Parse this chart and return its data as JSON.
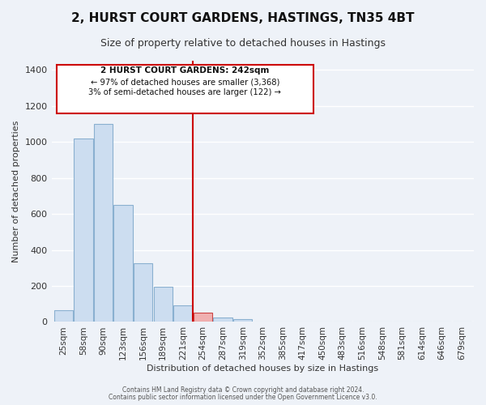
{
  "title": "2, HURST COURT GARDENS, HASTINGS, TN35 4BT",
  "subtitle": "Size of property relative to detached houses in Hastings",
  "xlabel": "Distribution of detached houses by size in Hastings",
  "ylabel": "Number of detached properties",
  "bar_labels": [
    "25sqm",
    "58sqm",
    "90sqm",
    "123sqm",
    "156sqm",
    "189sqm",
    "221sqm",
    "254sqm",
    "287sqm",
    "319sqm",
    "352sqm",
    "385sqm",
    "417sqm",
    "450sqm",
    "483sqm",
    "516sqm",
    "548sqm",
    "581sqm",
    "614sqm",
    "646sqm",
    "679sqm"
  ],
  "bar_values": [
    65,
    1020,
    1100,
    650,
    325,
    195,
    90,
    50,
    25,
    15,
    0,
    0,
    0,
    0,
    0,
    0,
    0,
    0,
    0,
    0,
    0
  ],
  "bar_color": "#ccddf0",
  "bar_edge_color": "#8ab0d0",
  "highlight_bar_index": 7,
  "highlight_bar_color": "#f0b0b0",
  "highlight_bar_edge_color": "#cc4444",
  "vline_x": 7.0,
  "vline_color": "#cc0000",
  "ylim": [
    0,
    1450
  ],
  "yticks": [
    0,
    200,
    400,
    600,
    800,
    1000,
    1200,
    1400
  ],
  "annotation_title": "2 HURST COURT GARDENS: 242sqm",
  "annotation_line1": "← 97% of detached houses are smaller (3,368)",
  "annotation_line2": "3% of semi-detached houses are larger (122) →",
  "footer_line1": "Contains HM Land Registry data © Crown copyright and database right 2024.",
  "footer_line2": "Contains public sector information licensed under the Open Government Licence v3.0.",
  "background_color": "#eef2f8",
  "grid_color": "#ffffff",
  "title_fontsize": 11,
  "subtitle_fontsize": 9,
  "axis_label_fontsize": 8,
  "tick_fontsize": 7.5
}
